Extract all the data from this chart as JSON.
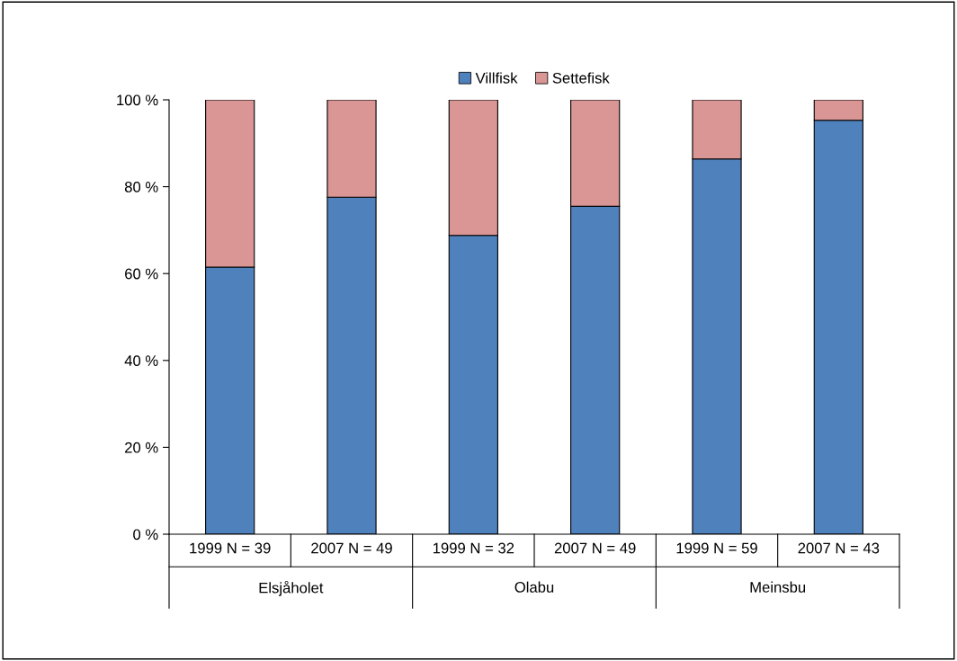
{
  "chart_data": {
    "type": "bar",
    "stacked": true,
    "categories": [
      "1999 N = 39",
      "2007 N = 49",
      "1999 N = 32",
      "2007 N = 49",
      "1999 N = 59",
      "2007 N = 43"
    ],
    "series": [
      {
        "name": "Villfisk",
        "color": "#4f81bd",
        "values": [
          61.5,
          77.6,
          68.8,
          75.5,
          86.4,
          95.3
        ]
      },
      {
        "name": "Settefisk",
        "color": "#d99694",
        "values": [
          38.5,
          22.4,
          31.2,
          24.5,
          13.6,
          4.7
        ]
      }
    ],
    "ylim": [
      0,
      100
    ],
    "yticks": [
      {
        "value": 0,
        "label": "0 %"
      },
      {
        "value": 20,
        "label": "20 %"
      },
      {
        "value": 40,
        "label": "40 %"
      },
      {
        "value": 60,
        "label": "60 %"
      },
      {
        "value": 80,
        "label": "80 %"
      },
      {
        "value": 100,
        "label": "100 %"
      }
    ],
    "annotations": [
      "Elsjåholet",
      "Olabu",
      "Meinsbu"
    ],
    "legend": "top",
    "grid": false
  }
}
